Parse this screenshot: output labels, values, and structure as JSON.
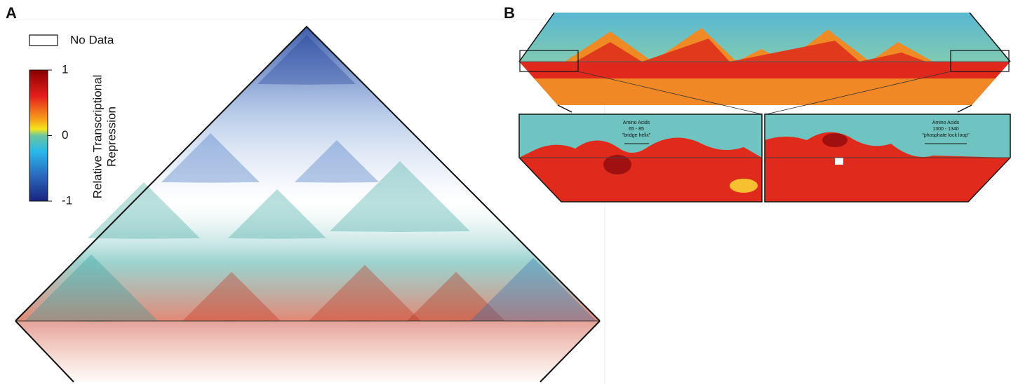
{
  "panel_a": {
    "label": "A",
    "legend": {
      "no_data": "No Data"
    },
    "colorbar": {
      "title_line1": "Relative Transcriptional",
      "title_line2": "Repression",
      "ticks": [
        1,
        0,
        -1
      ]
    }
  },
  "panel_b": {
    "label": "B",
    "annotations": [
      {
        "line1": "Amino Acids",
        "line2": "65 - 85",
        "line3": "\"bridge helix\""
      },
      {
        "line1": "Amino Acids",
        "line2": "1300 - 1340",
        "line3": "\"phosphate lock loop\""
      }
    ]
  }
}
